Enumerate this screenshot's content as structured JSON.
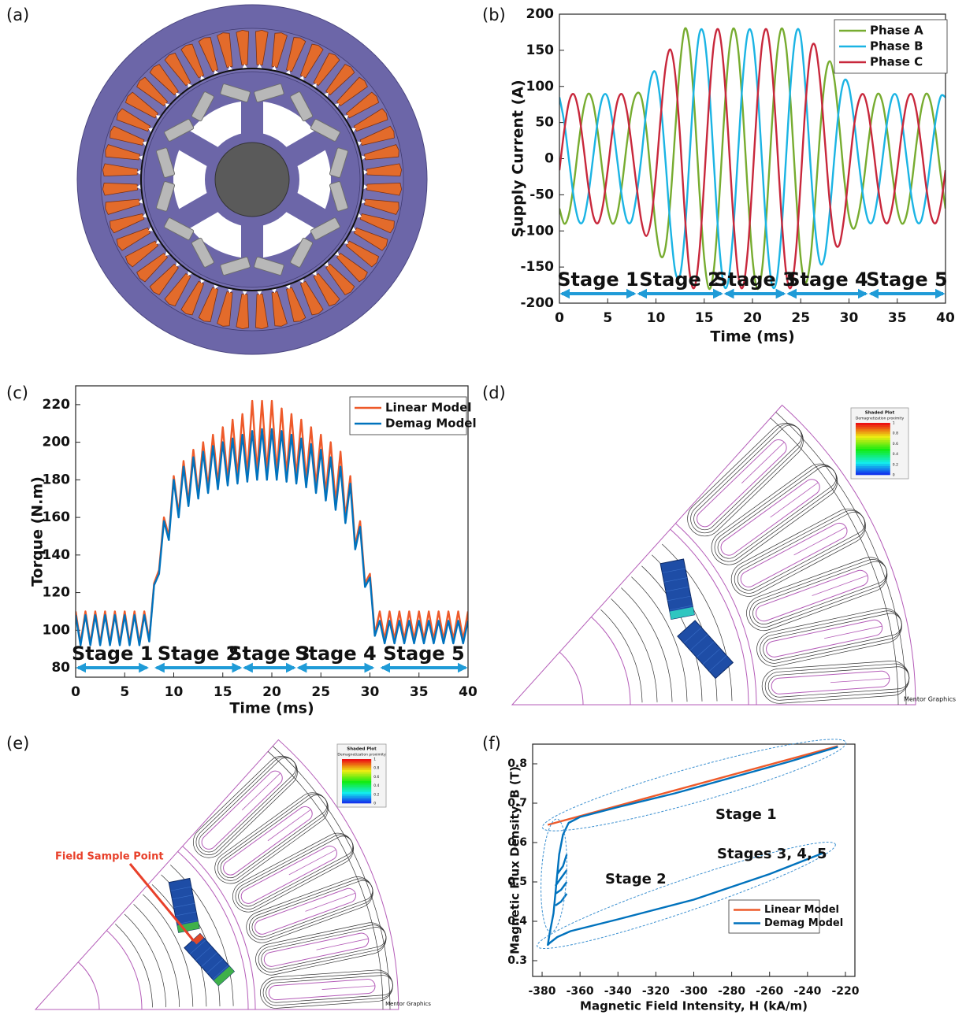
{
  "panels": [
    "(a)",
    "(b)",
    "(c)",
    "(d)",
    "(e)",
    "(f)"
  ],
  "fea": {
    "legend_title": "Shaded Plot",
    "legend_subtitle": "Demagnetization proximity",
    "legend_ticks": [
      1,
      0.8,
      0.6,
      0.4,
      0.2,
      0
    ],
    "watermark": "Mentor Graphics",
    "sample_point": "Field Sample Point"
  },
  "chart_data": [
    {
      "type": "line",
      "smooth": true,
      "xlabel": "Time (ms)",
      "ylabel": "Supply Current (A)",
      "x": [
        0,
        0.5,
        1,
        1.5,
        2,
        2.5,
        3,
        3.5,
        4,
        4.5,
        5,
        5.5,
        6,
        6.5,
        7,
        7.5,
        8,
        8.5,
        9,
        9.5,
        10,
        10.5,
        11,
        11.5,
        12,
        12.5,
        13,
        13.5,
        14,
        14.5,
        15,
        15.5,
        16,
        16.5,
        17,
        17.5,
        18,
        18.5,
        19,
        19.5,
        20,
        20.5,
        21,
        21.5,
        22,
        22.5,
        23,
        23.5,
        24,
        24.5,
        25,
        25.5,
        26,
        26.5,
        27,
        27.5,
        28,
        28.5,
        29,
        29.5,
        30,
        30.5,
        31,
        31.5,
        32,
        32.5,
        33,
        33.5,
        34,
        34.5,
        35,
        35.5,
        36,
        36.5,
        37,
        37.5,
        38,
        38.5,
        39,
        39.5,
        40
      ],
      "xlim": [
        0,
        40
      ],
      "xticks": [
        0,
        5,
        10,
        15,
        20,
        25,
        30,
        35,
        40
      ],
      "ylim": [
        -200,
        200
      ],
      "yticks": [
        -200,
        -150,
        -100,
        -50,
        0,
        50,
        100,
        150,
        200
      ],
      "legend": "upper right",
      "series": [
        {
          "name": "Phase A",
          "color": "#77AC30",
          "values": [
            -69,
            -90,
            -76,
            -34,
            22,
            69,
            90,
            76,
            34,
            -22,
            -69,
            -90,
            -76,
            -34,
            22,
            69,
            90,
            84,
            41,
            -28,
            -97,
            -135,
            -122,
            -57,
            39,
            131,
            180,
            153,
            68,
            -44,
            -138,
            -180,
            -153,
            -68,
            44,
            138,
            180,
            153,
            68,
            -44,
            -138,
            -180,
            -153,
            -68,
            44,
            138,
            180,
            153,
            68,
            -44,
            -138,
            -172,
            -140,
            -59,
            36,
            109,
            135,
            108,
            45,
            -27,
            -80,
            -97,
            -76,
            -34,
            22,
            69,
            90,
            76,
            34,
            -22,
            -69,
            -90,
            -76,
            -34,
            22,
            69,
            90,
            76,
            34,
            -22,
            -69
          ]
        },
        {
          "name": "Phase B",
          "color": "#1BB4E4",
          "values": [
            85,
            50,
            -3,
            -55,
            -86,
            -85,
            -50,
            3,
            55,
            86,
            85,
            50,
            -3,
            -55,
            -86,
            -85,
            -50,
            3,
            67,
            112,
            118,
            75,
            -5,
            -94,
            -156,
            -161,
            -101,
            6,
            111,
            173,
            169,
            101,
            -6,
            -111,
            -173,
            -169,
            -101,
            6,
            111,
            173,
            169,
            101,
            -6,
            -111,
            -173,
            -169,
            -101,
            6,
            111,
            173,
            169,
            96,
            -6,
            -97,
            -144,
            -134,
            -75,
            4,
            74,
            108,
            99,
            55,
            -3,
            -55,
            -86,
            -85,
            -50,
            3,
            55,
            86,
            85,
            50,
            -3,
            -55,
            -86,
            -85,
            -50,
            3,
            55,
            86,
            85
          ]
        },
        {
          "name": "Phase C",
          "color": "#C8283C",
          "values": [
            -16,
            39,
            79,
            89,
            65,
            16,
            -39,
            -79,
            -89,
            -65,
            -16,
            39,
            79,
            89,
            65,
            16,
            -39,
            -87,
            -107,
            -84,
            -22,
            59,
            127,
            151,
            116,
            30,
            -79,
            -159,
            -178,
            -129,
            -31,
            79,
            159,
            178,
            129,
            31,
            -79,
            -159,
            -178,
            -129,
            -31,
            79,
            159,
            178,
            129,
            31,
            -79,
            -159,
            -178,
            -129,
            -31,
            76,
            146,
            156,
            108,
            25,
            -59,
            -113,
            -119,
            -81,
            -18,
            43,
            79,
            89,
            65,
            16,
            -39,
            -79,
            -89,
            -65,
            -16,
            39,
            79,
            89,
            65,
            16,
            -39,
            -79,
            -89,
            -65,
            -16
          ]
        }
      ],
      "stage_color": "#1F9BD7",
      "stages": [
        {
          "label": "Stage 1",
          "start": 0,
          "end": 8
        },
        {
          "label": "Stage 2",
          "start": 8,
          "end": 17
        },
        {
          "label": "Stage 3",
          "start": 17,
          "end": 23.5
        },
        {
          "label": "Stage 4",
          "start": 23.5,
          "end": 32
        },
        {
          "label": "Stage 5",
          "start": 32,
          "end": 40
        }
      ]
    },
    {
      "type": "line",
      "smooth": false,
      "xlabel": "Time (ms)",
      "ylabel": "Torque (N.m)",
      "x": [
        0,
        0.5,
        1,
        1.5,
        2,
        2.5,
        3,
        3.5,
        4,
        4.5,
        5,
        5.5,
        6,
        6.5,
        7,
        7.5,
        8,
        8.5,
        9,
        9.5,
        10,
        10.5,
        11,
        11.5,
        12,
        12.5,
        13,
        13.5,
        14,
        14.5,
        15,
        15.5,
        16,
        16.5,
        17,
        17.5,
        18,
        18.5,
        19,
        19.5,
        20,
        20.5,
        21,
        21.5,
        22,
        22.5,
        23,
        23.5,
        24,
        24.5,
        25,
        25.5,
        26,
        26.5,
        27,
        27.5,
        28,
        28.5,
        29,
        29.5,
        30,
        30.5,
        31,
        31.5,
        32,
        32.5,
        33,
        33.5,
        34,
        34.5,
        35,
        35.5,
        36,
        36.5,
        37,
        37.5,
        38,
        38.5,
        39,
        39.5,
        40
      ],
      "xlim": [
        0,
        40
      ],
      "xticks": [
        0,
        5,
        10,
        15,
        20,
        25,
        30,
        35,
        40
      ],
      "ylim": [
        75,
        230
      ],
      "yticks": [
        80,
        100,
        120,
        140,
        160,
        180,
        200,
        220
      ],
      "legend": "upper right",
      "series": [
        {
          "name": "Linear Model",
          "color": "#EE5A2A",
          "values": [
            110,
            93,
            110,
            93,
            110,
            93,
            110,
            93,
            110,
            93,
            110,
            93,
            110,
            93,
            110,
            95,
            125,
            132,
            160,
            150,
            182,
            162,
            190,
            168,
            196,
            172,
            200,
            176,
            204,
            178,
            208,
            180,
            212,
            182,
            215,
            183,
            222,
            184,
            222,
            184,
            222,
            184,
            218,
            183,
            215,
            182,
            212,
            180,
            208,
            177,
            204,
            173,
            200,
            168,
            195,
            160,
            182,
            145,
            158,
            125,
            130,
            98,
            110,
            95,
            110,
            95,
            110,
            95,
            110,
            95,
            110,
            95,
            110,
            95,
            110,
            95,
            110,
            95,
            110,
            95,
            110
          ]
        },
        {
          "name": "Demag Model",
          "color": "#0072BD",
          "values": [
            108,
            92,
            108,
            92,
            108,
            92,
            108,
            92,
            108,
            92,
            108,
            92,
            108,
            92,
            108,
            94,
            124,
            130,
            158,
            148,
            180,
            160,
            187,
            166,
            192,
            170,
            195,
            173,
            198,
            175,
            200,
            177,
            202,
            178,
            204,
            179,
            206,
            180,
            207,
            180,
            207,
            180,
            206,
            179,
            204,
            178,
            202,
            176,
            199,
            173,
            196,
            169,
            192,
            164,
            187,
            157,
            178,
            143,
            155,
            123,
            128,
            97,
            105,
            93,
            105,
            93,
            105,
            93,
            105,
            93,
            105,
            93,
            105,
            93,
            105,
            93,
            105,
            93,
            105,
            93,
            105
          ]
        }
      ],
      "stage_color": "#1F9BD7",
      "stages": [
        {
          "label": "Stage 1",
          "start": 0,
          "end": 7.5
        },
        {
          "label": "Stage 2",
          "start": 8,
          "end": 17
        },
        {
          "label": "Stage 3",
          "start": 17,
          "end": 22.5
        },
        {
          "label": "Stage 4",
          "start": 22.5,
          "end": 30.5
        },
        {
          "label": "Stage 5",
          "start": 31,
          "end": 40
        }
      ]
    },
    {
      "type": "line",
      "smooth": false,
      "xlabel": "Magnetic Field Intensity, H (kA/m)",
      "ylabel": "Magnetic Flux Density, B (T)",
      "xlim": [
        -385,
        -215
      ],
      "xticks": [
        -380,
        -360,
        -340,
        -320,
        -300,
        -280,
        -260,
        -240,
        -220
      ],
      "ylim": [
        0.26,
        0.85
      ],
      "yticks": [
        0.3,
        0.4,
        0.5,
        0.6,
        0.7,
        0.8
      ],
      "legend": "lower right",
      "annotations": [
        "Stage 1",
        "Stage 2",
        "Stages 3, 4, 5"
      ],
      "series": [
        {
          "name": "Linear Model",
          "color": "#EE5A2A",
          "x": [
            -377,
            -224
          ],
          "values": [
            0.645,
            0.845
          ]
        },
        {
          "name": "Demag Model",
          "color": "#0072BD",
          "x": [
            -224,
            -250,
            -280,
            -310,
            -340,
            -360,
            -366,
            -369,
            -371,
            -372,
            -373,
            -374,
            -376,
            -377,
            -376,
            -372,
            -365,
            -340,
            -300,
            -260,
            -232,
            null,
            -373,
            -370,
            -367,
            null,
            -373,
            -370,
            -367,
            null,
            -373,
            -370,
            -367,
            null,
            -372,
            -369,
            -367
          ],
          "values": [
            0.843,
            0.805,
            0.765,
            0.725,
            0.69,
            0.665,
            0.65,
            0.62,
            0.57,
            0.52,
            0.47,
            0.42,
            0.37,
            0.34,
            0.345,
            0.36,
            0.375,
            0.405,
            0.455,
            0.52,
            0.573,
            null,
            0.44,
            0.45,
            0.47,
            null,
            0.47,
            0.48,
            0.5,
            null,
            0.49,
            0.51,
            0.53,
            null,
            0.52,
            0.54,
            0.57
          ]
        }
      ]
    }
  ]
}
